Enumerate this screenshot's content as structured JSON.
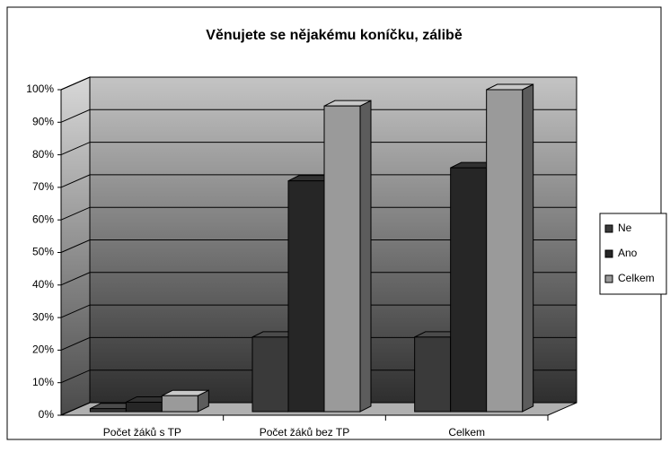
{
  "chart_data": {
    "type": "bar3d",
    "title": "Věnujete se nějakému koníčku, zálibě",
    "categories": [
      "Počet žáků s TP",
      "Počet žáků bez TP",
      "Celkem"
    ],
    "series": [
      {
        "name": "Ne",
        "color": "#3a3a3a",
        "values": [
          2,
          24,
          24
        ]
      },
      {
        "name": "Ano",
        "color": "#262626",
        "values": [
          4,
          72,
          76
        ]
      },
      {
        "name": "Celkem",
        "color": "#9a9a9a",
        "values": [
          6,
          95,
          100
        ]
      }
    ],
    "ylim": [
      0,
      100
    ],
    "yticks": [
      {
        "value": 0,
        "label": "0%"
      },
      {
        "value": 10,
        "label": "10%"
      },
      {
        "value": 20,
        "label": "20%"
      },
      {
        "value": 30,
        "label": "30%"
      },
      {
        "value": 40,
        "label": "40%"
      },
      {
        "value": 50,
        "label": "50%"
      },
      {
        "value": 60,
        "label": "60%"
      },
      {
        "value": 70,
        "label": "70%"
      },
      {
        "value": 80,
        "label": "80%"
      },
      {
        "value": 90,
        "label": "90%"
      },
      {
        "value": 100,
        "label": "100%"
      }
    ],
    "grid": true,
    "legend": "right"
  }
}
